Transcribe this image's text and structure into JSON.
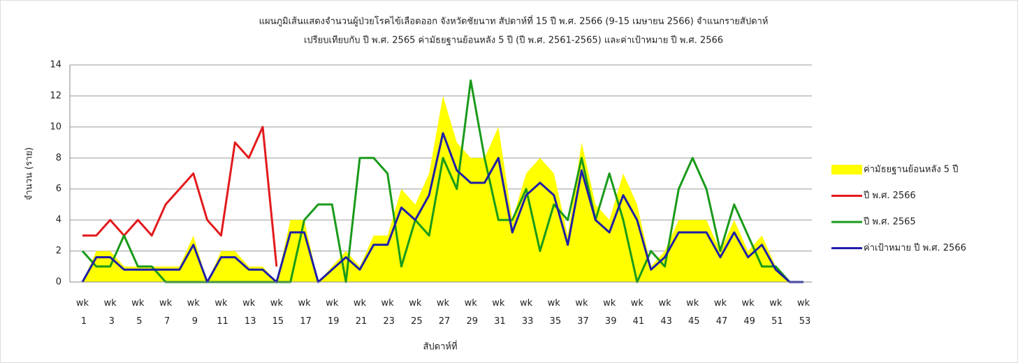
{
  "chart_data": {
    "type": "line",
    "title": "แผนภูมิเส้นแสดงจำนวนผู้ป่วยโรคไข้เลือดออก จังหวัดชัยนาท สัปดาห์ที่ 15 ปี พ.ศ. 2566 (9-15 เมษายน 2566) จำแนกรายสัปดาห์",
    "subtitle": "เปรียบเทียบกับ ปี พ.ศ. 2565 ค่ามัธยฐานย้อนหลัง 5 ปี (ปี พ.ศ. 2561-2565) และค่าเป้าหมาย ปี พ.ศ. 2566",
    "y_label": "จำนวน (ราย)",
    "x_label": "สัปดาห์ที่",
    "categories": [
      "wk 1",
      null,
      "wk 3",
      null,
      "wk 5",
      null,
      "wk 7",
      null,
      "wk 9",
      null,
      "wk 11",
      null,
      "wk 13",
      null,
      "wk 15",
      null,
      "wk 17",
      null,
      "wk 19",
      null,
      "wk 21",
      null,
      "wk 23",
      null,
      "wk 25",
      null,
      "wk 27",
      null,
      "wk 29",
      null,
      "wk 31",
      null,
      "wk 33",
      null,
      "wk 35",
      null,
      "wk 37",
      null,
      "wk 39",
      null,
      "wk 41",
      null,
      "wk 43",
      null,
      "wk 45",
      null,
      "wk 47",
      null,
      "wk 49",
      null,
      "wk 51",
      null,
      "wk 53"
    ],
    "series": [
      {
        "name": "ค่ามัธยฐานย้อนหลัง 5 ปี",
        "type": "area",
        "color": "#ffff00",
        "values": [
          0,
          2,
          2,
          1,
          1,
          1,
          1,
          1,
          3,
          0,
          2,
          2,
          1,
          1,
          0,
          4,
          4,
          0,
          1,
          2,
          1,
          3,
          3,
          6,
          5,
          7,
          12,
          9,
          8,
          8,
          10,
          4,
          7,
          8,
          7,
          3,
          9,
          5,
          4,
          7,
          5,
          1,
          2,
          4,
          4,
          4,
          2,
          4,
          2,
          3,
          1,
          0,
          0
        ]
      },
      {
        "name": "ปี พ.ศ. 2566",
        "type": "line",
        "color": "#e31a1c",
        "values": [
          3,
          3,
          4,
          3,
          4,
          3,
          5,
          6,
          7,
          4,
          3,
          9,
          8,
          10,
          1,
          null,
          null,
          null,
          null,
          null,
          null,
          null,
          null,
          null,
          null,
          null,
          null,
          null,
          null,
          null,
          null,
          null,
          null,
          null,
          null,
          null,
          null,
          null,
          null,
          null,
          null,
          null,
          null,
          null,
          null,
          null,
          null,
          null,
          null,
          null,
          null,
          null,
          null
        ]
      },
      {
        "name": "ปี พ.ศ. 2565",
        "type": "line",
        "color": "#1a9a1a",
        "values": [
          2,
          1,
          1,
          3,
          1,
          1,
          0,
          0,
          0,
          0,
          0,
          0,
          0,
          0,
          0,
          0,
          4,
          5,
          5,
          0,
          8,
          8,
          7,
          1,
          4,
          3,
          8,
          6,
          13,
          8,
          4,
          4,
          6,
          2,
          5,
          4,
          8,
          4,
          7,
          4,
          0,
          2,
          1,
          6,
          8,
          6,
          2,
          5,
          3,
          1,
          1,
          0,
          0
        ]
      },
      {
        "name": "ค่าเป้าหมาย ปี พ.ศ. 2566",
        "type": "line",
        "color": "#1f1fa8",
        "values": [
          0,
          1.6,
          1.6,
          0.8,
          0.8,
          0.8,
          0.8,
          0.8,
          2.4,
          0,
          1.6,
          1.6,
          0.8,
          0.8,
          0,
          3.2,
          3.2,
          0,
          0.8,
          1.6,
          0.8,
          2.4,
          2.4,
          4.8,
          4,
          5.6,
          9.6,
          7.2,
          6.4,
          6.4,
          8,
          3.2,
          5.6,
          6.4,
          5.6,
          2.4,
          7.2,
          4,
          3.2,
          5.6,
          4,
          0.8,
          1.6,
          3.2,
          3.2,
          3.2,
          1.6,
          3.2,
          1.6,
          2.4,
          0.8,
          0,
          0
        ]
      }
    ],
    "ylim": [
      0,
      14
    ],
    "yticks": [
      0,
      2,
      4,
      6,
      8,
      10,
      12,
      14
    ],
    "grid": true,
    "legend": "right"
  }
}
